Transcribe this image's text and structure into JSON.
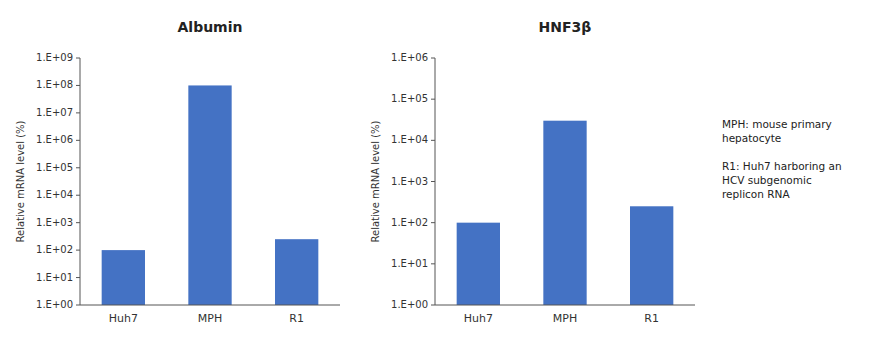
{
  "chart_data": [
    {
      "type": "bar",
      "title": "Albumin",
      "categories": [
        "Huh7",
        "MPH",
        "R1"
      ],
      "values": [
        100.0,
        100000000.0,
        250.0
      ],
      "color": "#4472C4",
      "y_label": "Relative mRNA level (%)",
      "log": "y",
      "ylim": [
        1.0,
        1000000000.0
      ],
      "yticks": [
        {
          "value": 1.0,
          "label": "1.E+00"
        },
        {
          "value": 10.0,
          "label": "1.E+01"
        },
        {
          "value": 100.0,
          "label": "1.E+02"
        },
        {
          "value": 1000.0,
          "label": "1.E+03"
        },
        {
          "value": 10000.0,
          "label": "1.E+04"
        },
        {
          "value": 100000.0,
          "label": "1.E+05"
        },
        {
          "value": 1000000.0,
          "label": "1.E+06"
        },
        {
          "value": 10000000.0,
          "label": "1.E+07"
        },
        {
          "value": 100000000.0,
          "label": "1.E+08"
        },
        {
          "value": 1000000000.0,
          "label": "1.E+09"
        }
      ],
      "grid": false
    },
    {
      "type": "bar",
      "title": "HNF3β",
      "categories": [
        "Huh7",
        "MPH",
        "R1"
      ],
      "values": [
        100.0,
        30000.0,
        250.0
      ],
      "color": "#4472C4",
      "y_label": "Relative mRNA level (%)",
      "log": "y",
      "ylim": [
        1.0,
        1000000.0
      ],
      "yticks": [
        {
          "value": 1.0,
          "label": "1.E+00"
        },
        {
          "value": 10.0,
          "label": "1.E+01"
        },
        {
          "value": 100.0,
          "label": "1.E+02"
        },
        {
          "value": 1000.0,
          "label": "1.E+03"
        },
        {
          "value": 10000.0,
          "label": "1.E+04"
        },
        {
          "value": 100000.0,
          "label": "1.E+05"
        },
        {
          "value": 1000000.0,
          "label": "1.E+06"
        }
      ],
      "grid": false,
      "annotations": [
        [
          "MPH: mouse primary",
          "hepatocyte"
        ],
        [
          "R1: Huh7 harboring an",
          "HCV subgenomic",
          "replicon RNA"
        ]
      ]
    }
  ]
}
